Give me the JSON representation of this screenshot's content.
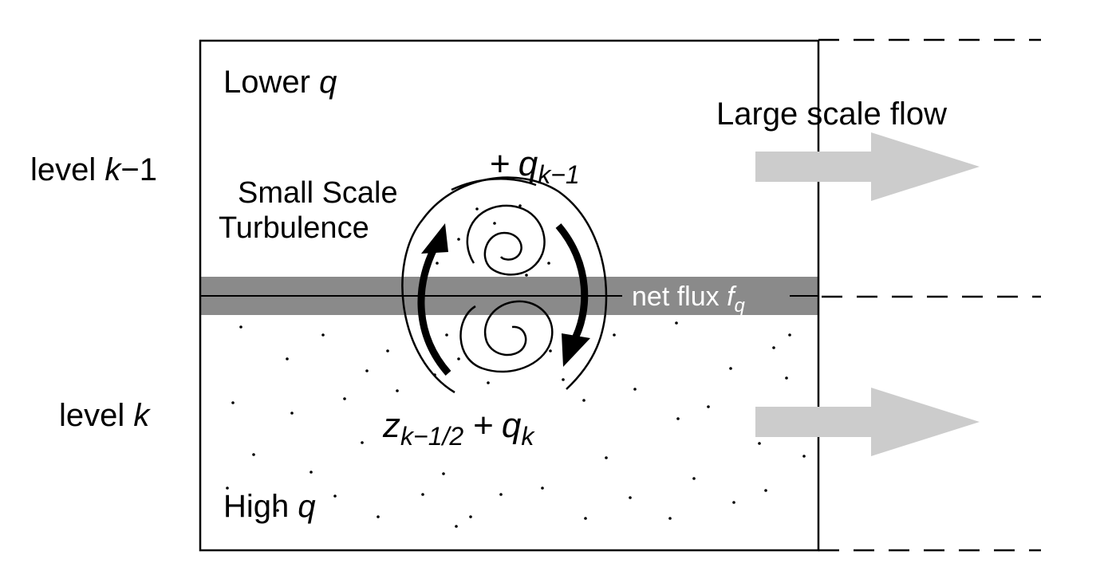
{
  "labels": {
    "lower_q_text": "Lower ",
    "lower_q_var": "q",
    "high_q_text": "High ",
    "high_q_var": "q",
    "level_k1_text": "level ",
    "level_k1_var": "k",
    "level_k1_suffix": "−1",
    "level_k_text": "level ",
    "level_k_var": "k",
    "small_scale_line1": "Small Scale",
    "small_scale_line2": "Turbulence",
    "large_scale_flow": "Large scale flow",
    "net_flux_text": "net flux ",
    "net_flux_var": "f",
    "net_flux_sub": "q",
    "plus_top": "+",
    "q_top": "q",
    "q_top_sub": "k−1",
    "z_var": "z",
    "z_sub": "k−1/2",
    "plus_bottom": "+",
    "q_bottom": "q",
    "q_bottom_sub": "k"
  },
  "colors": {
    "flux_band": "#8a8a8a",
    "flow_arrow": "#cccccc",
    "stroke": "#000000",
    "net_flux_text": "#ffffff"
  }
}
